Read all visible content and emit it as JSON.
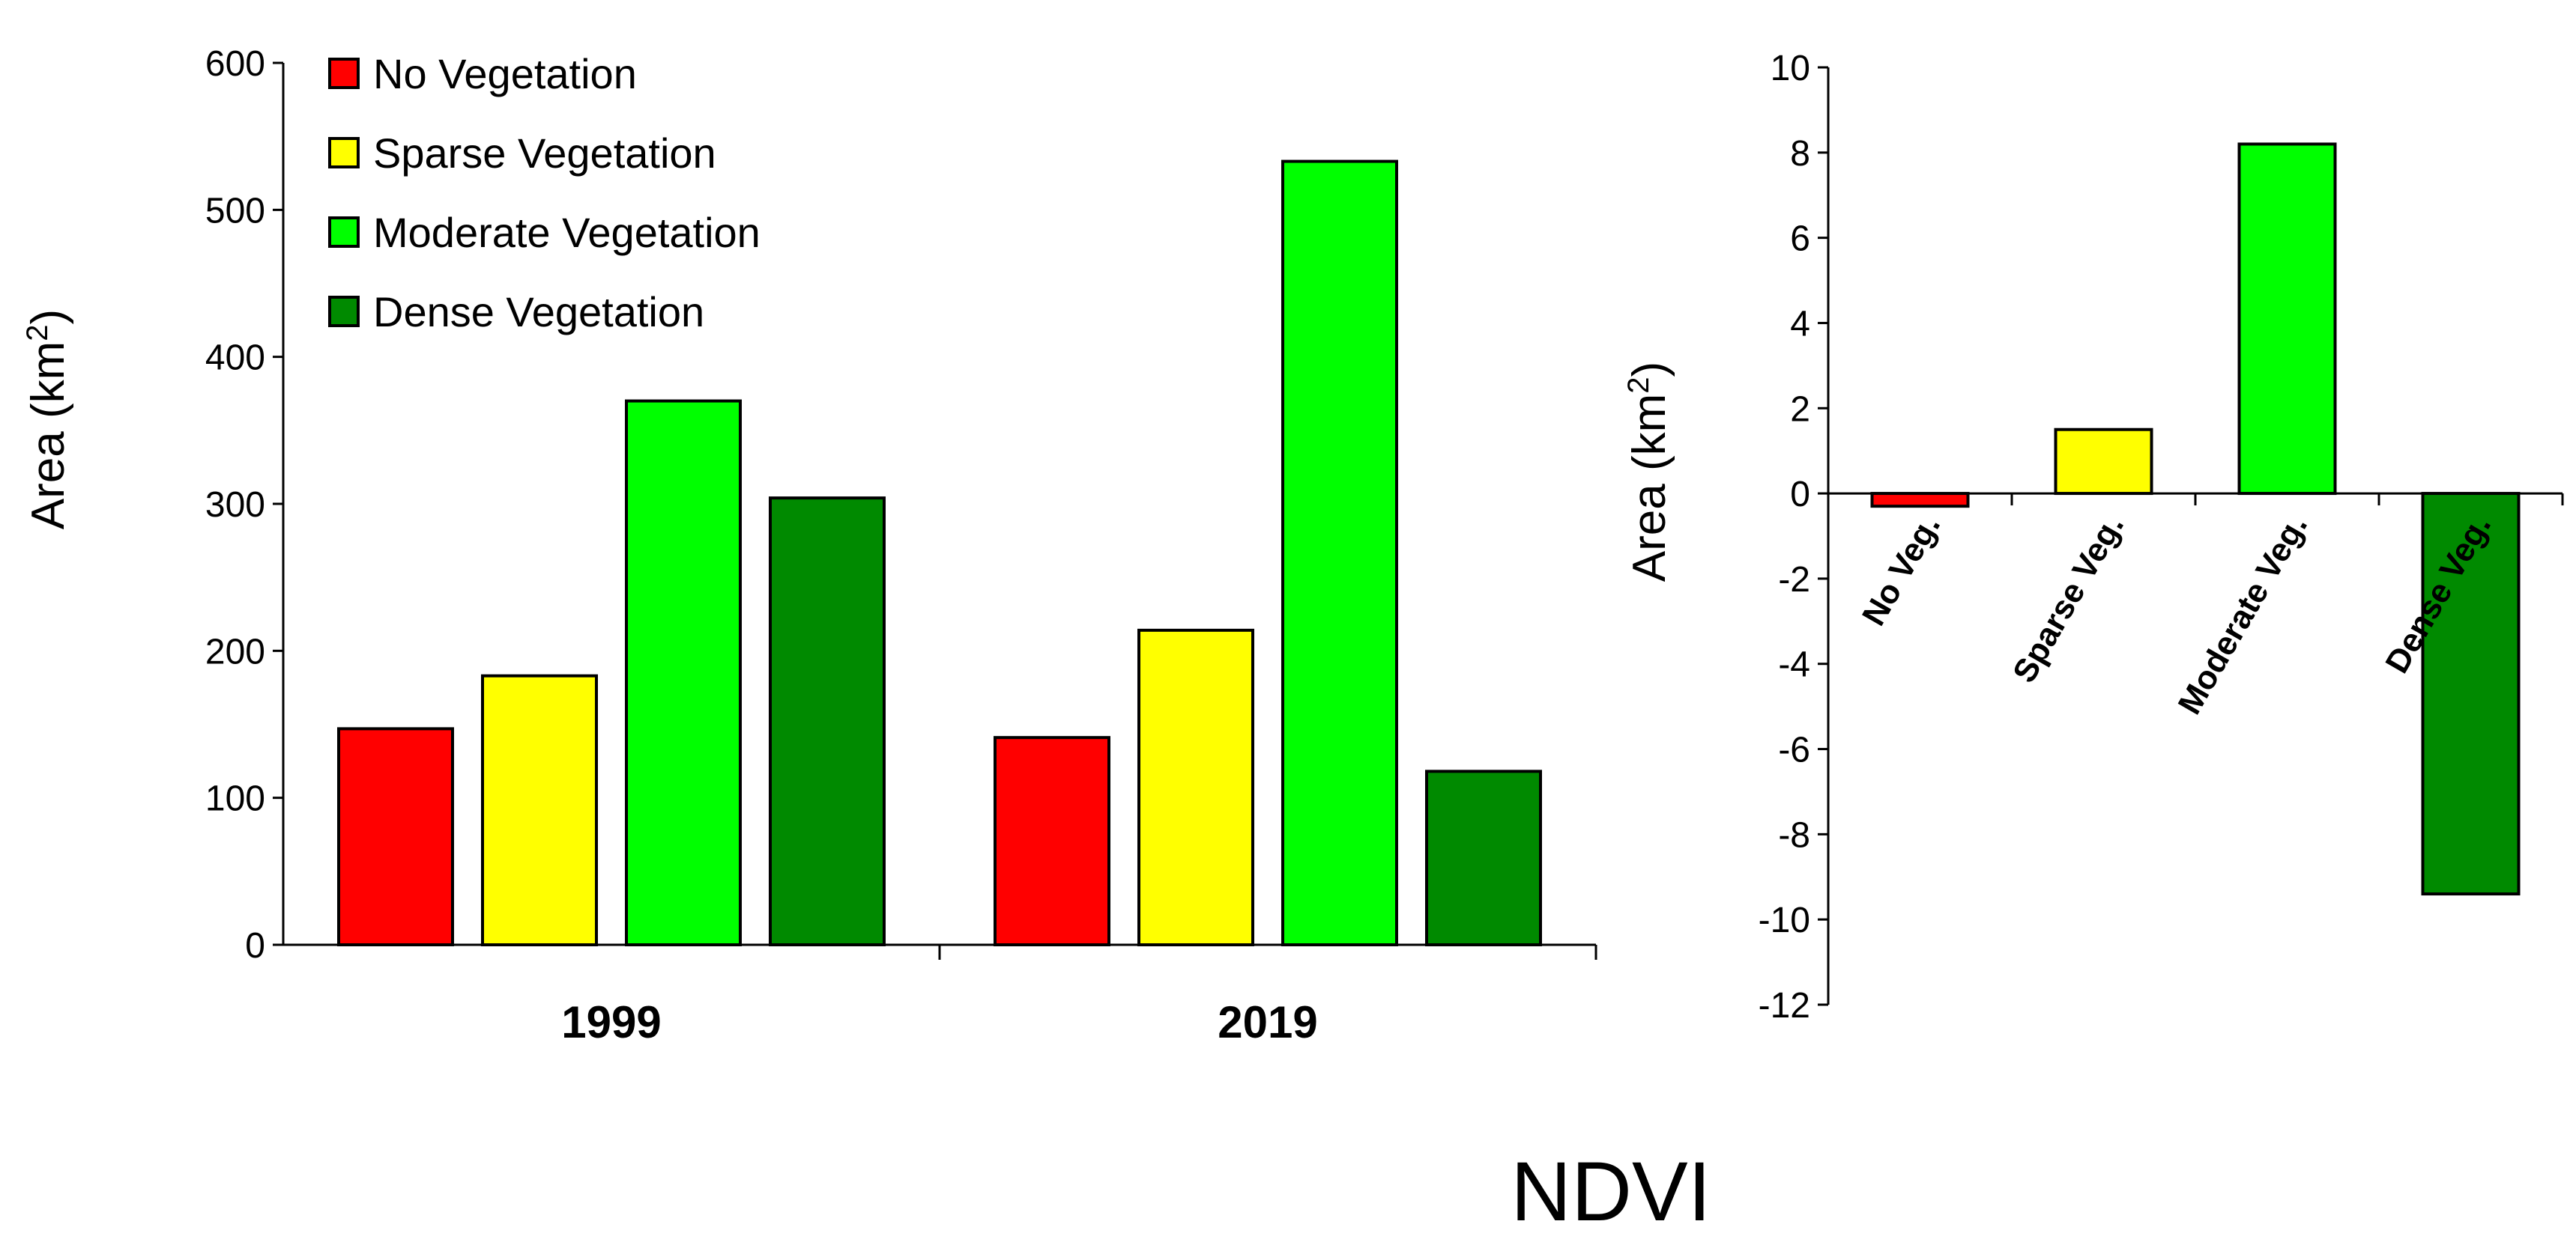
{
  "caption": "NDVI",
  "chart_data": [
    {
      "type": "bar",
      "title": "",
      "xlabel": "",
      "ylabel": "Area (km",
      "ylabel_sup": "2",
      "ylabel_close": ")",
      "categories": [
        "1999",
        "2019"
      ],
      "ylim": [
        0,
        600
      ],
      "yticks": [
        0,
        100,
        200,
        300,
        400,
        500,
        600
      ],
      "legend_position": "top-left",
      "series": [
        {
          "name": "No Vegetation",
          "color": "#ff0000",
          "values": [
            147,
            141
          ]
        },
        {
          "name": "Sparse Vegetation",
          "color": "#ffff00",
          "values": [
            183,
            214
          ]
        },
        {
          "name": "Moderate Vegetation",
          "color": "#00ff00",
          "values": [
            370,
            533
          ]
        },
        {
          "name": "Dense Vegetation",
          "color": "#008a00",
          "values": [
            304,
            118
          ]
        }
      ]
    },
    {
      "type": "bar",
      "title": "",
      "xlabel": "",
      "ylabel": "Area (km",
      "ylabel_sup": "2",
      "ylabel_close": ")",
      "categories": [
        "No Veg.",
        "Sparse Veg.",
        "Moderate Veg.",
        "Dense Veg."
      ],
      "values": [
        -0.3,
        1.5,
        8.2,
        -9.4
      ],
      "colors": [
        "#ff0000",
        "#ffff00",
        "#00ff00",
        "#008a00"
      ],
      "ylim": [
        -12,
        10
      ],
      "yticks": [
        -12,
        -10,
        -8,
        -6,
        -4,
        -2,
        0,
        2,
        4,
        6,
        8,
        10
      ]
    }
  ]
}
